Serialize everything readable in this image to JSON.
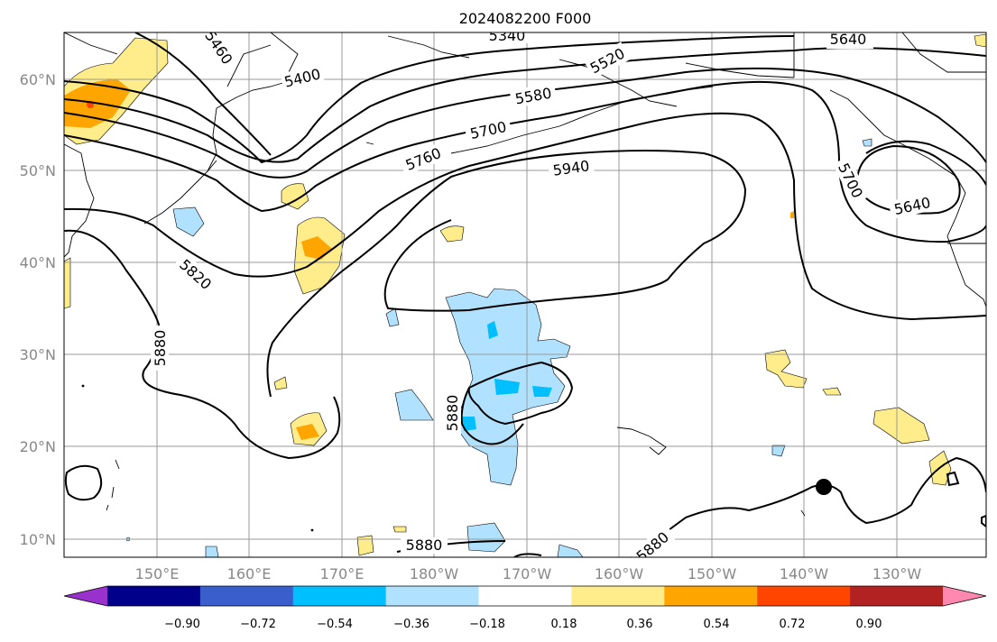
{
  "title": "2024082200 F000",
  "lat_labels": [
    "60°N",
    "50°N",
    "40°N",
    "30°N",
    "20°N",
    "10°N"
  ],
  "lon_labels": [
    "150°E",
    "160°E",
    "170°E",
    "180°W",
    "170°W",
    "160°W",
    "150°W",
    "140°W",
    "130°W"
  ],
  "contour_labels": [
    "5460",
    "5400",
    "5340",
    "5520",
    "5640",
    "5580",
    "5700",
    "5760",
    "5940",
    "5700",
    "5640",
    "5820",
    "5880",
    "5880",
    "5880",
    "5880"
  ],
  "colorbar": {
    "ticks": [
      "−0.90",
      "−0.72",
      "−0.54",
      "−0.36",
      "−0.18",
      "0.18",
      "0.36",
      "0.54",
      "0.72",
      "0.90"
    ],
    "colors": [
      "#9932cc",
      "#00008b",
      "#3a5fcd",
      "#00bfff",
      "#b0e2ff",
      "#ffffff",
      "#ffec8b",
      "#ffa500",
      "#ff4500",
      "#b22222",
      "#ff88b0"
    ]
  }
}
